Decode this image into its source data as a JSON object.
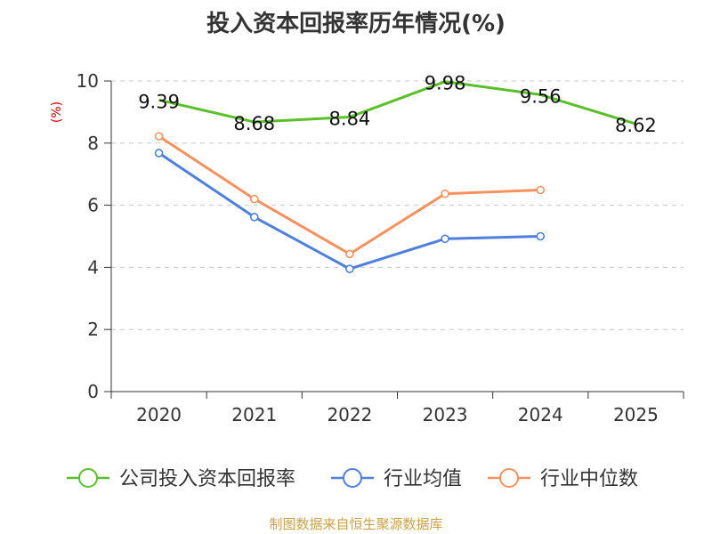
{
  "chart_data": {
    "type": "line",
    "title": "投入资本回报率历年情况(%)",
    "ylabel": "(%)",
    "xlabel": "",
    "categories": [
      "2020",
      "2021",
      "2022",
      "2023",
      "2024",
      "2025"
    ],
    "ylim": [
      0,
      10
    ],
    "yticks": [
      0,
      2,
      4,
      6,
      8,
      10
    ],
    "grid": "horizontal dashed",
    "legend_position": "bottom",
    "series": [
      {
        "name": "公司投入资本回报率",
        "color": "#5cbf2a",
        "values": [
          9.39,
          8.68,
          8.84,
          9.98,
          9.56,
          8.62
        ],
        "show_labels": true,
        "show_markers": false
      },
      {
        "name": "行业均值",
        "color": "#4f7fdc",
        "values": [
          7.68,
          5.62,
          3.95,
          4.92,
          5.0,
          null
        ],
        "show_labels": false,
        "show_markers": true
      },
      {
        "name": "行业中位数",
        "color": "#f79260",
        "values": [
          8.22,
          6.2,
          4.43,
          6.37,
          6.49,
          null
        ],
        "show_labels": false,
        "show_markers": true
      }
    ]
  },
  "footer": {
    "source": "制图数据来自恒生聚源数据库"
  }
}
